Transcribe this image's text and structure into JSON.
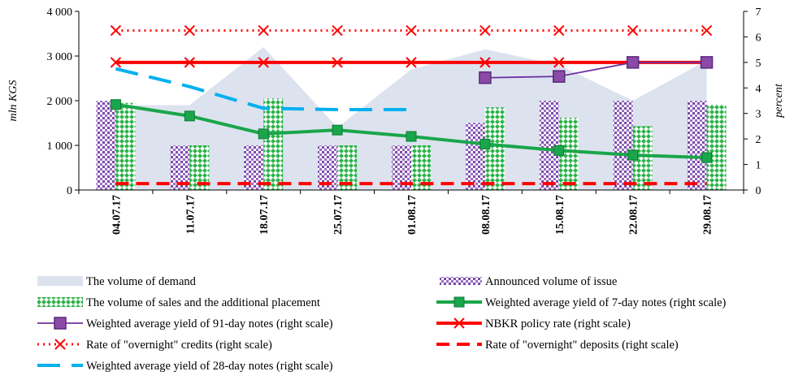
{
  "chart_data": {
    "type": "bar",
    "x": [
      "04.07.17",
      "11.07.17",
      "18.07.17",
      "25.07.17",
      "01.08.17",
      "08.08.17",
      "15.08.17",
      "22.08.17",
      "29.08.17"
    ],
    "left_axis": {
      "label": "mln KGS",
      "min": 0,
      "max": 4000,
      "ticks": [
        "0",
        "1 000",
        "2 000",
        "3 000",
        "4 000"
      ]
    },
    "right_axis": {
      "label": "percent",
      "min": 0,
      "max": 7,
      "ticks": [
        "0",
        "1",
        "2",
        "3",
        "4",
        "5",
        "6",
        "7"
      ]
    },
    "series": [
      {
        "name": "The volume of demand",
        "type": "area",
        "axis": "left",
        "color": "#dce3ef",
        "values": [
          1900,
          1900,
          3200,
          1400,
          2700,
          3150,
          2800,
          2000,
          2900
        ]
      },
      {
        "name": "Announced volume of issue",
        "type": "bar",
        "axis": "left",
        "color": "#7b4aa8",
        "values": [
          2000,
          1000,
          1000,
          1000,
          1000,
          1500,
          2000,
          2000,
          2000
        ]
      },
      {
        "name": "The volume of sales and the additional placement",
        "type": "bar",
        "axis": "left",
        "color": "#2db34a",
        "values": [
          1950,
          1000,
          2050,
          1000,
          1000,
          1850,
          1620,
          1430,
          1920
        ]
      },
      {
        "name": "Weighted average yield of 7-day notes (right scale)",
        "type": "line",
        "axis": "right",
        "color": "#1aa64a",
        "values": [
          3.35,
          2.9,
          2.2,
          2.35,
          2.1,
          1.8,
          1.55,
          1.37,
          1.27
        ]
      },
      {
        "name": "Weighted average yield of 91-day notes (right scale)",
        "type": "line",
        "axis": "right",
        "color": "#7030a0",
        "values": [
          null,
          null,
          null,
          null,
          null,
          4.4,
          4.45,
          5.0,
          5.0
        ]
      },
      {
        "name": "NBKR policy rate (right scale)",
        "type": "line",
        "axis": "right",
        "color": "#ff0000",
        "values": [
          5.0,
          5.0,
          5.0,
          5.0,
          5.0,
          5.0,
          5.0,
          5.0,
          5.0
        ]
      },
      {
        "name": "Rate of \"overnight\" credits (right scale)",
        "type": "line",
        "axis": "right",
        "color": "#ff0000",
        "values": [
          6.25,
          6.25,
          6.25,
          6.25,
          6.25,
          6.25,
          6.25,
          6.25,
          6.25
        ]
      },
      {
        "name": "Rate of \"overnight\" deposits (right scale)",
        "type": "line",
        "axis": "right",
        "color": "#ff0000",
        "values": [
          0.25,
          0.25,
          0.25,
          0.25,
          0.25,
          0.25,
          0.25,
          0.25,
          0.25
        ]
      },
      {
        "name": "Weighted average yield of 28-day notes (right scale)",
        "type": "line",
        "axis": "right",
        "color": "#00b0f0",
        "values": [
          4.75,
          4.05,
          3.2,
          3.15,
          3.15,
          null,
          null,
          null,
          null
        ]
      }
    ]
  }
}
